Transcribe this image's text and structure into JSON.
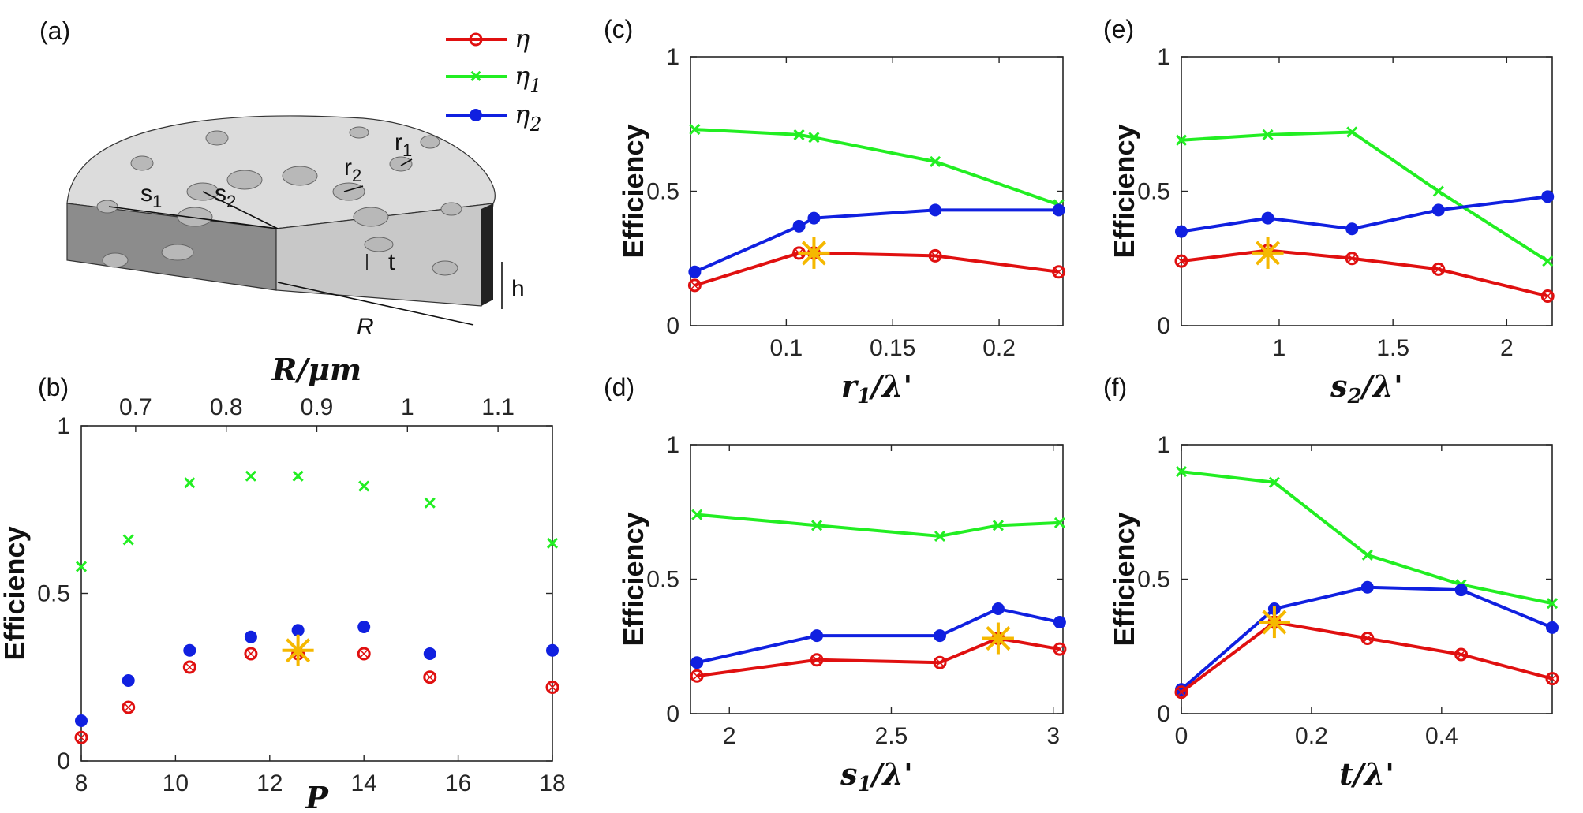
{
  "colors": {
    "eta": "#e01010",
    "eta1": "#22ee22",
    "eta2": "#1020e0",
    "star": "#f5b800"
  },
  "legend": {
    "eta": {
      "sym": "η",
      "sub": ""
    },
    "eta1": {
      "sym": "η",
      "sub": "1"
    },
    "eta2": {
      "sym": "η",
      "sub": "2"
    }
  },
  "diagram": {
    "tag": "(a)",
    "labels": {
      "s1": "s",
      "s1_sub": "1",
      "s2": "s",
      "s2_sub": "2",
      "r1": "r",
      "r1_sub": "1",
      "r2": "r",
      "r2_sub": "2",
      "t": "t",
      "h": "h",
      "R": "R"
    }
  },
  "chart_data": [
    {
      "id": "b",
      "tag": "(b)",
      "type": "scatter",
      "xlabel": "P",
      "ylabel": "Efficiency",
      "top_xlabel": "R/μm",
      "xlim": [
        8,
        18
      ],
      "ylim": [
        0,
        1
      ],
      "xticks": [
        8,
        10,
        12,
        14,
        16,
        18
      ],
      "yticks": [
        0,
        0.5,
        1
      ],
      "top_xlim": [
        0.64,
        1.16
      ],
      "top_xticks": [
        0.7,
        0.8,
        0.9,
        1,
        1.1
      ],
      "top_xticklabels": [
        "0.7",
        "0.8",
        "0.9",
        "1",
        "1.1"
      ],
      "x": [
        8,
        9,
        10.3,
        11.6,
        12.6,
        14,
        15.4,
        18
      ],
      "series": [
        {
          "name": "η1",
          "key": "eta1",
          "values": [
            0.58,
            0.66,
            0.83,
            0.85,
            0.85,
            0.82,
            0.77,
            0.65
          ]
        },
        {
          "name": "η2",
          "key": "eta2",
          "values": [
            0.12,
            0.24,
            0.33,
            0.37,
            0.39,
            0.4,
            0.32,
            0.33
          ]
        },
        {
          "name": "η",
          "key": "eta",
          "values": [
            0.07,
            0.16,
            0.28,
            0.32,
            0.32,
            0.32,
            0.25,
            0.22
          ]
        }
      ],
      "star": [
        12.6,
        0.33
      ]
    },
    {
      "id": "c",
      "tag": "(c)",
      "type": "line",
      "xlabel": "r1/λ'",
      "ylabel": "Efficiency",
      "xlim": [
        0.055,
        0.23
      ],
      "ylim": [
        0,
        1
      ],
      "xticks": [
        0.1,
        0.15,
        0.2
      ],
      "xticklabels": [
        "0.1",
        "0.15",
        "0.2"
      ],
      "yticks": [
        0,
        0.5,
        1
      ],
      "x": [
        0.057,
        0.106,
        0.113,
        0.17,
        0.228
      ],
      "series": [
        {
          "name": "η1",
          "key": "eta1",
          "values": [
            0.73,
            0.71,
            0.7,
            0.61,
            0.45
          ]
        },
        {
          "name": "η2",
          "key": "eta2",
          "values": [
            0.2,
            0.37,
            0.4,
            0.43,
            0.43
          ]
        },
        {
          "name": "η",
          "key": "eta",
          "values": [
            0.15,
            0.27,
            0.27,
            0.26,
            0.2
          ]
        }
      ],
      "star": [
        0.113,
        0.27
      ]
    },
    {
      "id": "e",
      "tag": "(e)",
      "type": "line",
      "xlabel": "s2/λ'",
      "ylabel": "Efficiency",
      "xlim": [
        0.57,
        2.2
      ],
      "ylim": [
        0,
        1
      ],
      "xticks": [
        1,
        1.5,
        2
      ],
      "xticklabels": [
        "1",
        "1.5",
        "2"
      ],
      "yticks": [
        0,
        0.5,
        1
      ],
      "x": [
        0.57,
        0.95,
        1.32,
        1.7,
        2.18
      ],
      "series": [
        {
          "name": "η1",
          "key": "eta1",
          "values": [
            0.69,
            0.71,
            0.72,
            0.5,
            0.24
          ]
        },
        {
          "name": "η2",
          "key": "eta2",
          "values": [
            0.35,
            0.4,
            0.36,
            0.43,
            0.48
          ]
        },
        {
          "name": "η",
          "key": "eta",
          "values": [
            0.24,
            0.28,
            0.25,
            0.21,
            0.11
          ]
        }
      ],
      "star": [
        0.95,
        0.27
      ]
    },
    {
      "id": "d",
      "tag": "(d)",
      "type": "line",
      "xlabel": "s1/λ'",
      "ylabel": "Efficiency",
      "xlim": [
        1.88,
        3.03
      ],
      "ylim": [
        0,
        1
      ],
      "xticks": [
        2,
        2.5,
        3
      ],
      "xticklabels": [
        "2",
        "2.5",
        "3"
      ],
      "yticks": [
        0,
        0.5,
        1
      ],
      "x": [
        1.9,
        2.27,
        2.65,
        2.83,
        3.02
      ],
      "series": [
        {
          "name": "η1",
          "key": "eta1",
          "values": [
            0.74,
            0.7,
            0.66,
            0.7,
            0.71
          ]
        },
        {
          "name": "η2",
          "key": "eta2",
          "values": [
            0.19,
            0.29,
            0.29,
            0.39,
            0.34
          ]
        },
        {
          "name": "η",
          "key": "eta",
          "values": [
            0.14,
            0.2,
            0.19,
            0.28,
            0.24
          ]
        }
      ],
      "star": [
        2.83,
        0.28
      ]
    },
    {
      "id": "f",
      "tag": "(f)",
      "type": "line",
      "xlabel": "t/λ'",
      "ylabel": "Efficiency",
      "xlim": [
        0,
        0.57
      ],
      "ylim": [
        0,
        1
      ],
      "xticks": [
        0,
        0.2,
        0.4
      ],
      "xticklabels": [
        "0",
        "0.2",
        "0.4"
      ],
      "yticks": [
        0,
        0.5,
        1
      ],
      "x": [
        0.0,
        0.143,
        0.286,
        0.43,
        0.57
      ],
      "series": [
        {
          "name": "η1",
          "key": "eta1",
          "values": [
            0.9,
            0.86,
            0.59,
            0.48,
            0.41
          ]
        },
        {
          "name": "η2",
          "key": "eta2",
          "values": [
            0.09,
            0.39,
            0.47,
            0.46,
            0.32
          ]
        },
        {
          "name": "η",
          "key": "eta",
          "values": [
            0.08,
            0.34,
            0.28,
            0.22,
            0.13
          ]
        }
      ],
      "star": [
        0.143,
        0.34
      ]
    }
  ]
}
